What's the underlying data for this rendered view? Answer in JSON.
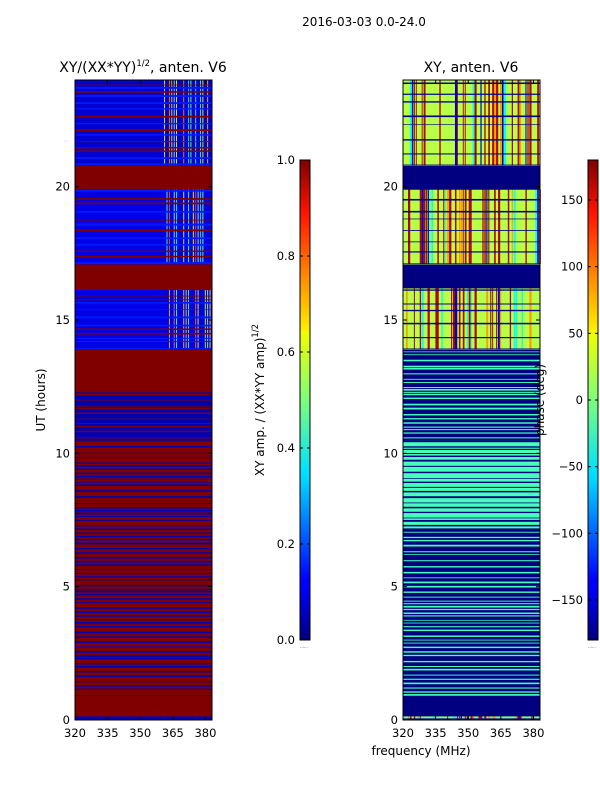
{
  "figure": {
    "date_title": "2016-03-03 0.0-24.0",
    "xlabel_shared": "frequency (MHz)",
    "ylabel": "UT (hours)"
  },
  "chart_data": [
    {
      "type": "heatmap",
      "title_main": "XY/(XX*YY)",
      "title_exp": "1/2",
      "title_suffix": ", anten. V6",
      "xlim": [
        320,
        383
      ],
      "ylim": [
        0,
        24
      ],
      "xticks": [
        320,
        335,
        350,
        365,
        380
      ],
      "yticks": [
        0,
        5,
        10,
        15,
        20
      ],
      "colormap": "jet",
      "colorbar": {
        "label_main": "XY amp. / (XX*YY amp)",
        "label_exp": "1/2",
        "range": [
          0.0,
          1.0
        ],
        "ticks": [
          "0.0",
          "0.2",
          "0.4",
          "0.6",
          "0.8",
          "1.0"
        ]
      },
      "bands": [
        {
          "t0": 0.0,
          "t1": 0.15,
          "value": 0.05
        },
        {
          "t0": 0.15,
          "t1": 0.85,
          "value": 1.0
        },
        {
          "t0": 0.85,
          "t1": 7.2,
          "value": 1.0,
          "striped": 0.05
        },
        {
          "t0": 7.2,
          "t1": 10.5,
          "value": 1.0,
          "striped": 0.05
        },
        {
          "t0": 10.5,
          "t1": 12.3,
          "value": 0.05,
          "striped": 1.0
        },
        {
          "t0": 12.3,
          "t1": 13.9,
          "value": 1.0
        },
        {
          "t0": 13.9,
          "t1": 16.2,
          "value": 0.1,
          "hf": true
        },
        {
          "t0": 16.2,
          "t1": 17.1,
          "value": 1.0
        },
        {
          "t0": 17.1,
          "t1": 19.9,
          "value": 0.1,
          "hf": true
        },
        {
          "t0": 19.9,
          "t1": 20.8,
          "value": 1.0
        },
        {
          "t0": 20.8,
          "t1": 24.0,
          "value": 0.08,
          "hf": true
        }
      ]
    },
    {
      "type": "heatmap",
      "title": "XY, anten. V6",
      "xlim": [
        320,
        383
      ],
      "ylim": [
        0,
        24
      ],
      "xticks": [
        320,
        335,
        350,
        365,
        380
      ],
      "yticks": [
        0,
        5,
        10,
        15,
        20
      ],
      "colormap": "jet",
      "colorbar": {
        "label": "phase (deg)",
        "range": [
          -180,
          180
        ],
        "ticks": [
          "-150",
          "-100",
          "-50",
          "0",
          "50",
          "100",
          "150"
        ]
      },
      "bands": [
        {
          "t0": 0.0,
          "t1": 0.15,
          "value": 0,
          "mixed": true
        },
        {
          "t0": 0.15,
          "t1": 0.85,
          "value": -180
        },
        {
          "t0": 0.85,
          "t1": 7.2,
          "value": -180,
          "striped": -20
        },
        {
          "t0": 7.2,
          "t1": 10.5,
          "value": -20,
          "striped": -180
        },
        {
          "t0": 10.5,
          "t1": 13.9,
          "value": -180,
          "striped": -20
        },
        {
          "t0": 13.9,
          "t1": 16.2,
          "value": 20,
          "mixed": true
        },
        {
          "t0": 16.2,
          "t1": 17.1,
          "value": -180
        },
        {
          "t0": 17.1,
          "t1": 19.9,
          "value": 20,
          "mixed": true
        },
        {
          "t0": 19.9,
          "t1": 20.8,
          "value": -180
        },
        {
          "t0": 20.8,
          "t1": 24.0,
          "value": 20,
          "mixed": true
        }
      ]
    }
  ]
}
